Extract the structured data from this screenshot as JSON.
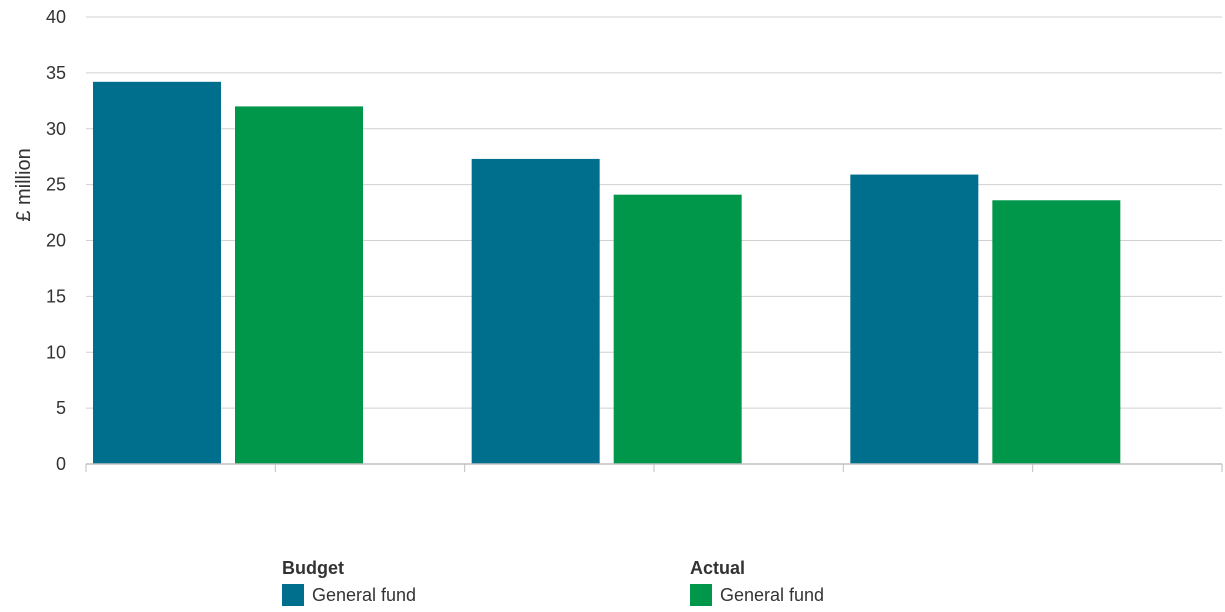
{
  "chart_data": {
    "type": "bar",
    "ylabel": "£ million",
    "ylim": [
      0,
      40
    ],
    "yticks": [
      0,
      5,
      10,
      15,
      20,
      25,
      30,
      35,
      40
    ],
    "categories": [
      "",
      "",
      ""
    ],
    "grid": true,
    "legend_position": "bottom",
    "series": [
      {
        "group": "Budget",
        "name": "General fund",
        "color": "#006F8E",
        "values": [
          34.2,
          27.3,
          25.9
        ]
      },
      {
        "group": "Actual",
        "name": "General fund",
        "color": "#00974A",
        "values": [
          32.0,
          24.1,
          23.6
        ]
      }
    ]
  },
  "legend": {
    "budget_title": "Budget",
    "budget_item": "General fund",
    "actual_title": "Actual",
    "actual_item": "General fund"
  }
}
